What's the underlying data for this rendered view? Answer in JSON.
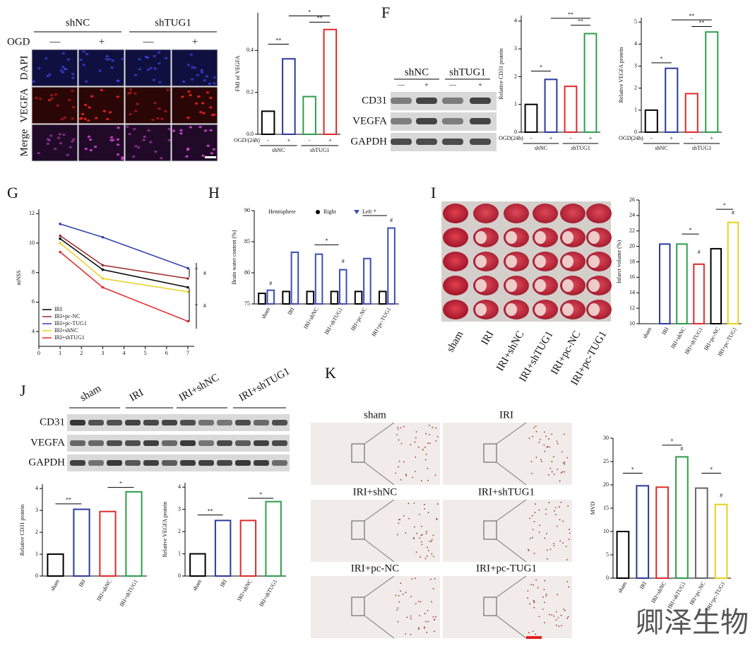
{
  "figure": {
    "panel_labels": [
      "F",
      "G",
      "H",
      "I",
      "J",
      "K"
    ],
    "if_image": {
      "groups": [
        "shNC",
        "shTUG1"
      ],
      "ogd_label": "OGD",
      "ogd": [
        "—",
        "+",
        "—",
        "+"
      ],
      "rows": [
        "DAPI",
        "VEGFA",
        "Merge"
      ]
    },
    "blot_f": {
      "groups": [
        "shNC",
        "shTUG1"
      ],
      "ogd": [
        "—",
        "+",
        "—",
        "+"
      ],
      "rows": [
        "CD31",
        "VEGFA",
        "GAPDH"
      ]
    },
    "brain_i": [
      "sham",
      "IRI",
      "IRI+shNC",
      "IRI+shTUG1",
      "IRI+pc-NC",
      "IRI+pc-TUG1"
    ],
    "blot_j": {
      "groups": [
        "sham",
        "IRI",
        "IRI+shNC",
        "IRI+shTUG1"
      ],
      "rows": [
        "CD31",
        "VEGFA",
        "GAPDH"
      ]
    },
    "histology_k": [
      "sham",
      "IRI",
      "IRI+shNC",
      "IRI+shTUG1",
      "IRI+pc-NC",
      "IRI+pc-TUG1"
    ],
    "watermark": "卿泽生物"
  },
  "chart_data": [
    {
      "type": "bar",
      "y_label": "FMI of VEGFA",
      "x_label": "OGD/(24h)",
      "groups": [
        "shNC",
        "shTUG1"
      ],
      "categories": [
        "-",
        "+",
        "-",
        "+"
      ],
      "values": [
        0.11,
        0.36,
        0.18,
        0.5
      ],
      "colors": [
        "#000000",
        "#2b3a9e",
        "#2e9e4a",
        "#e02a2a"
      ],
      "ylim": [
        0,
        0.58
      ],
      "yticks": [
        {
          "value": 0,
          "label": "0.0"
        },
        0.2,
        0.4
      ],
      "annotations": [
        "**",
        "**",
        "*"
      ]
    },
    {
      "type": "bar",
      "y_label": "Relative CD31 protein",
      "x_label": "OGD(24h)",
      "groups": [
        "shNC",
        "shTUG1"
      ],
      "categories": [
        "-",
        "+",
        "-",
        "+"
      ],
      "values": [
        1.0,
        1.9,
        1.65,
        3.55
      ],
      "colors": [
        "#000000",
        "#2b3a9e",
        "#e02a2a",
        "#2e9e4a"
      ],
      "ylim": [
        0,
        4.2
      ],
      "yticks": [
        0,
        1,
        2,
        3,
        4
      ],
      "annotations": [
        "*",
        "**",
        "**"
      ]
    },
    {
      "type": "bar",
      "y_label": "Relative VEGFA protein",
      "x_label": "OGD(24h)",
      "groups": [
        "shNC",
        "shTUG1"
      ],
      "categories": [
        "-",
        "+",
        "-",
        "+"
      ],
      "values": [
        1.0,
        2.9,
        1.75,
        4.55
      ],
      "colors": [
        "#000000",
        "#2b3a9e",
        "#e02a2a",
        "#2e9e4a"
      ],
      "ylim": [
        0,
        5.2
      ],
      "yticks": [
        0,
        1,
        2,
        3,
        4,
        5
      ],
      "annotations": [
        "*",
        "**",
        "**"
      ]
    },
    {
      "type": "line",
      "y_label": "mNSS",
      "x": [
        1,
        3,
        7
      ],
      "xlim": [
        0,
        7.3
      ],
      "xticks": [
        0,
        1,
        2,
        3,
        4,
        5,
        6,
        7
      ],
      "ylim": [
        3,
        12.3
      ],
      "yticks": [
        4,
        6,
        8,
        10,
        12
      ],
      "series": [
        {
          "name": "IRI",
          "color": "#000000",
          "values": [
            10.3,
            8.2,
            7.0
          ]
        },
        {
          "name": "IRI+pc-NC",
          "color": "#a0282a",
          "values": [
            10.5,
            8.5,
            7.6
          ]
        },
        {
          "name": "IRI+pc-TUG1",
          "color": "#3040b0",
          "values": [
            11.3,
            10.4,
            8.3
          ]
        },
        {
          "name": "IRI+shNC",
          "color": "#e8d020",
          "values": [
            10.0,
            7.6,
            6.7
          ]
        },
        {
          "name": "IRI+shTUG1",
          "color": "#e02a2a",
          "values": [
            9.4,
            7.0,
            4.7
          ]
        }
      ],
      "annotations": [
        "*",
        "#",
        "*",
        "#"
      ]
    },
    {
      "type": "bar",
      "y_label": "Brain water content (%)",
      "legend_title": "Hemisphere",
      "categories": [
        "sham",
        "IRI",
        "IRI+shNC",
        "IRI+shTUG1",
        "IRI+pc-NC",
        "IRI+pc-TUG1"
      ],
      "series": [
        {
          "name": "Right",
          "color": "#000000",
          "values": [
            76.7,
            77.0,
            77.0,
            77.0,
            77.0,
            77.0
          ]
        },
        {
          "name": "Left",
          "color": "#3a4db8",
          "values": [
            77.2,
            83.3,
            83.0,
            80.5,
            82.3,
            87.2
          ]
        }
      ],
      "ylim": [
        75,
        90
      ],
      "yticks": [
        75,
        80,
        85,
        90
      ],
      "annotations": [
        "#",
        "*",
        "#",
        "*",
        "#"
      ]
    },
    {
      "type": "bar",
      "y_label": "Infarct volume (%)",
      "categories": [
        "sham",
        "IRI",
        "IRI+shNC",
        "IRI+shTUG1",
        "IRI+pc-NC",
        "IRI+pc-TUG1"
      ],
      "values": [
        null,
        20.3,
        20.3,
        17.7,
        19.7,
        23.1
      ],
      "colors": [
        "#000000",
        "#2b3a9e",
        "#2e9e4a",
        "#e02a2a",
        "#000000",
        "#e8d020"
      ],
      "ylim": [
        10,
        26
      ],
      "yticks": [
        10,
        12,
        14,
        16,
        18,
        20,
        22,
        24,
        26
      ],
      "annotations": [
        "*",
        "#",
        "*",
        "#"
      ]
    },
    {
      "type": "bar",
      "y_label": "Relative CD31 protein",
      "categories": [
        "sham",
        "IRI",
        "IRI+shNC",
        "IRI+shTUG1"
      ],
      "values": [
        1.0,
        3.05,
        2.95,
        3.85
      ],
      "colors": [
        "#000000",
        "#2b3a9e",
        "#e02a2a",
        "#2e9e4a"
      ],
      "ylim": [
        0,
        4.2
      ],
      "yticks": [
        0,
        1,
        2,
        3,
        4
      ],
      "annotations": [
        "**",
        "*"
      ]
    },
    {
      "type": "bar",
      "y_label": "Relative VEGFA protein",
      "categories": [
        "sham",
        "IRI",
        "IRI+shNC",
        "IRI+shTUG1"
      ],
      "values": [
        1.0,
        2.5,
        2.5,
        3.35
      ],
      "colors": [
        "#000000",
        "#2b3a9e",
        "#e02a2a",
        "#2e9e4a"
      ],
      "ylim": [
        0,
        4.2
      ],
      "yticks": [
        0,
        1,
        2,
        3,
        4
      ],
      "annotations": [
        "**",
        "*"
      ]
    },
    {
      "type": "bar",
      "y_label": "MVD",
      "categories": [
        "sham",
        "IRI",
        "IRI+shNC",
        "IRI+shTUG1",
        "IRI+pc-NC",
        "IRI+pc-TUG1"
      ],
      "values": [
        10.0,
        19.8,
        19.5,
        26.0,
        19.3,
        15.8
      ],
      "colors": [
        "#000000",
        "#2b3a9e",
        "#e02a2a",
        "#2e9e4a",
        "#666666",
        "#e8d020"
      ],
      "ylim": [
        0,
        30
      ],
      "yticks": [
        0,
        5,
        10,
        15,
        20,
        25,
        30
      ],
      "annotations": [
        "*",
        "*",
        "#",
        "*",
        "#"
      ]
    }
  ]
}
